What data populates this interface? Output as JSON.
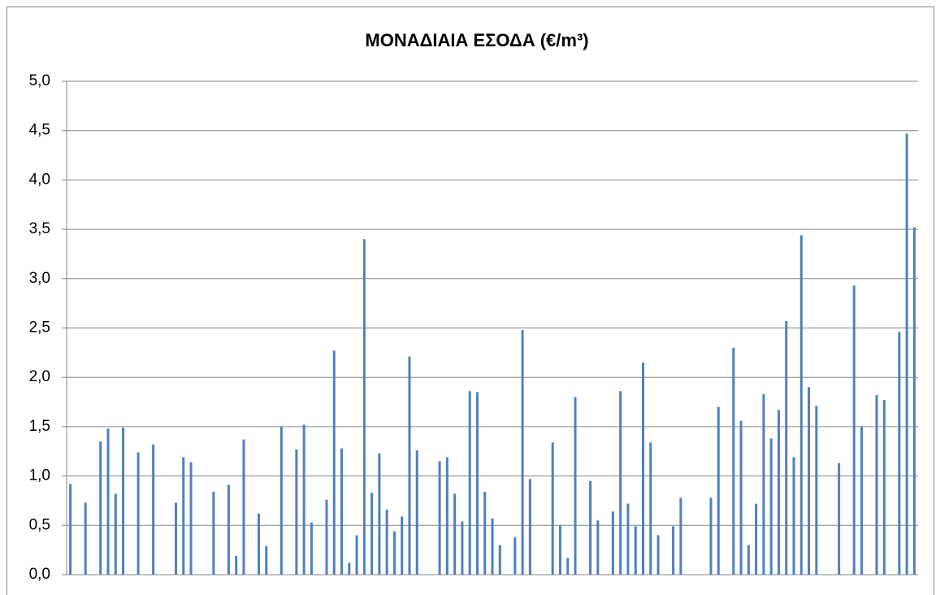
{
  "chart_data": {
    "type": "bar",
    "title": "ΜΟΝΑΔΙΑΙΑ ΕΣΟΔΑ (€/m³)",
    "categories": [
      null,
      null,
      null,
      null,
      null,
      null,
      null,
      null,
      null,
      null,
      null,
      null,
      null,
      null,
      null,
      null,
      null,
      null,
      null,
      null,
      null,
      null,
      null,
      null,
      null,
      null,
      null,
      null,
      null,
      null,
      null,
      null,
      null,
      null,
      null,
      null,
      null,
      null,
      null,
      null,
      null,
      null,
      null,
      null,
      null,
      null,
      null,
      null,
      null,
      null,
      null,
      null,
      null,
      null,
      null,
      null,
      null,
      null,
      null,
      null,
      null,
      null,
      null,
      null,
      null,
      null,
      null,
      null,
      null,
      null,
      null,
      null,
      null,
      null,
      null,
      null,
      null,
      null,
      null,
      null,
      null,
      null,
      null,
      null,
      null,
      null,
      null,
      null,
      null,
      null,
      null,
      null,
      null,
      null,
      null,
      null,
      null,
      null,
      null,
      null,
      null,
      null,
      null,
      null,
      null,
      null,
      null,
      null,
      null,
      null,
      null,
      null,
      null
    ],
    "values": [
      0.92,
      null,
      0.73,
      null,
      1.35,
      1.48,
      0.82,
      1.49,
      null,
      1.24,
      null,
      1.32,
      null,
      null,
      0.73,
      1.19,
      1.14,
      null,
      null,
      0.84,
      null,
      0.91,
      0.19,
      1.37,
      null,
      0.62,
      0.29,
      null,
      1.5,
      null,
      1.27,
      1.52,
      0.53,
      null,
      0.76,
      2.27,
      1.28,
      0.12,
      0.4,
      3.4,
      0.83,
      1.23,
      0.66,
      0.44,
      0.59,
      2.21,
      1.26,
      null,
      null,
      1.15,
      1.19,
      0.82,
      0.54,
      1.86,
      1.85,
      0.84,
      0.57,
      0.3,
      null,
      0.38,
      2.48,
      0.97,
      null,
      null,
      1.34,
      0.5,
      0.17,
      1.8,
      null,
      0.95,
      0.55,
      null,
      0.64,
      1.86,
      0.72,
      0.49,
      2.15,
      1.34,
      0.4,
      null,
      0.49,
      0.78,
      null,
      null,
      null,
      0.78,
      1.7,
      null,
      2.3,
      1.56,
      0.3,
      0.72,
      1.83,
      1.38,
      1.67,
      2.57,
      1.19,
      3.44,
      1.9,
      1.71,
      null,
      null,
      1.13,
      null,
      2.93,
      1.5,
      null,
      1.82,
      1.77,
      null,
      2.46,
      4.47,
      3.52
    ],
    "color": "#4f81bd",
    "ylim": [
      0,
      5
    ],
    "yticks": [
      {
        "value": 0,
        "label": "0,0"
      },
      {
        "value": 0.5,
        "label": "0,5"
      },
      {
        "value": 1,
        "label": "1,0"
      },
      {
        "value": 1.5,
        "label": "1,5"
      },
      {
        "value": 2,
        "label": "2,0"
      },
      {
        "value": 2.5,
        "label": "2,5"
      },
      {
        "value": 3,
        "label": "3,0"
      },
      {
        "value": 3.5,
        "label": "3,5"
      },
      {
        "value": 4,
        "label": "4,0"
      },
      {
        "value": 4.5,
        "label": "4,5"
      },
      {
        "value": 5,
        "label": "5,0"
      }
    ],
    "grid": true
  }
}
